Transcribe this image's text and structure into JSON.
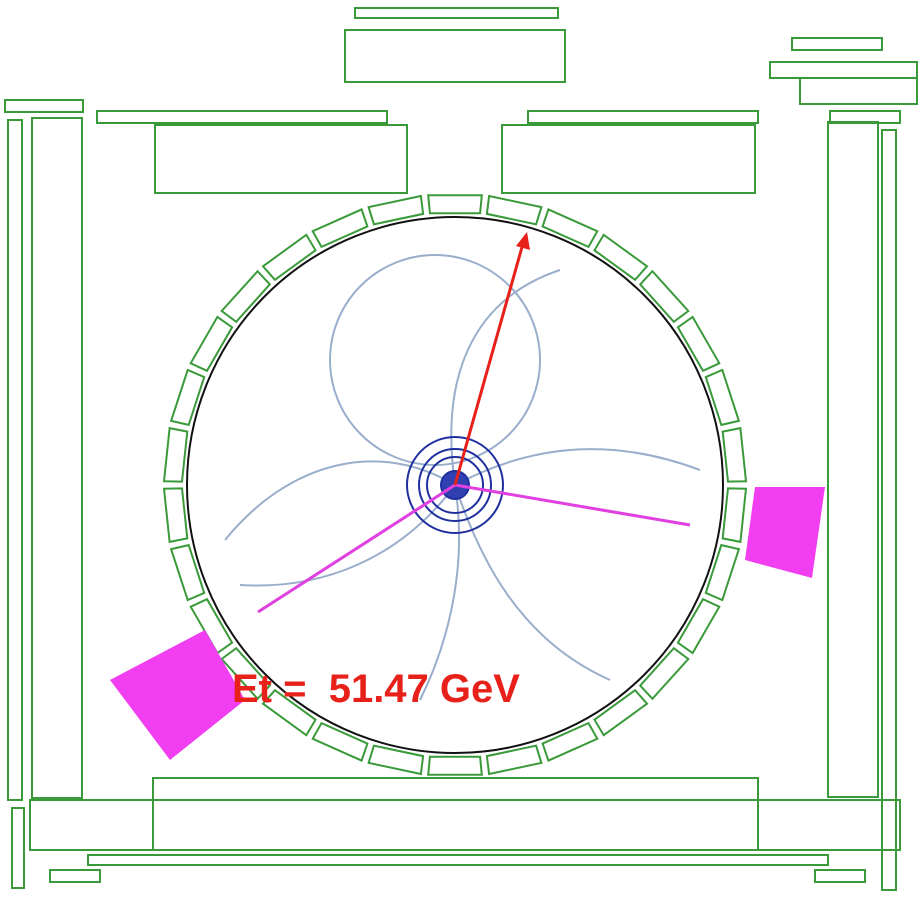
{
  "annotation": {
    "text": "Et =  51.47 GeV"
  }
}
